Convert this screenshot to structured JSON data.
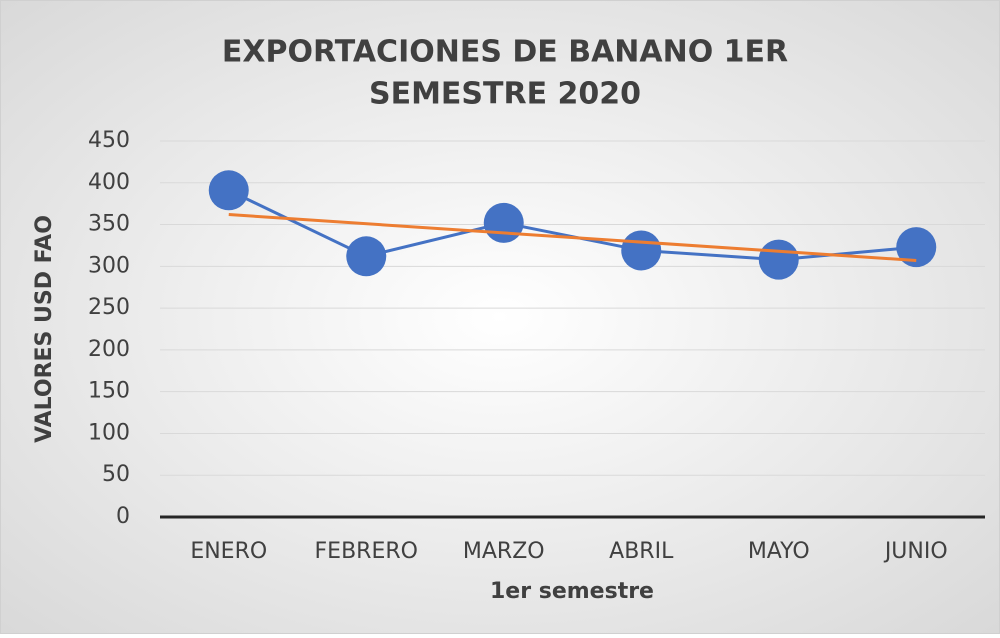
{
  "chart_data": {
    "type": "line",
    "title": [
      "EXPORTACIONES DE BANANO 1ER",
      "SEMESTRE 2020"
    ],
    "x_label": "1er semestre",
    "y_label": "VALORES USD FAO",
    "categories": [
      "ENERO",
      "FEBRERO",
      "MARZO",
      "ABRIL",
      "MAYO",
      "JUNIO"
    ],
    "series": [
      {
        "color": "#4472c4",
        "values": [
          391,
          312,
          352,
          319,
          308,
          323
        ]
      }
    ],
    "trendline": {
      "color": "#ed7d31",
      "values": [
        362,
        307
      ]
    },
    "ylim": [
      0,
      450
    ],
    "yticks": [
      0,
      50,
      100,
      150,
      200,
      250,
      300,
      350,
      400,
      450
    ],
    "grid": true
  }
}
